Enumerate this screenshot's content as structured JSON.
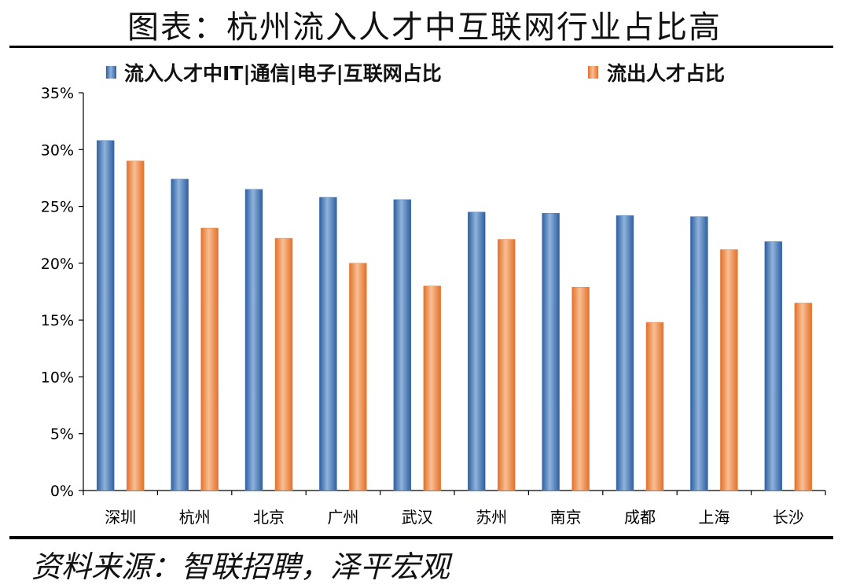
{
  "title": "图表：杭州流入人才中互联网行业占比高",
  "source": "资料来源：智联招聘，泽平宏观",
  "colors": {
    "series_in": "#4a7fc0",
    "series_out": "#ef8a48"
  },
  "chart_data": {
    "type": "bar",
    "categories": [
      "深圳",
      "杭州",
      "北京",
      "广州",
      "武汉",
      "苏州",
      "南京",
      "成都",
      "上海",
      "长沙"
    ],
    "series": [
      {
        "name": "流入人才中IT|通信|电子|互联网占比",
        "values": [
          30.8,
          27.4,
          26.5,
          25.8,
          25.6,
          24.5,
          24.4,
          24.2,
          24.1,
          21.9
        ]
      },
      {
        "name": "流出人才占比",
        "values": [
          29.0,
          23.1,
          22.2,
          20.0,
          18.0,
          22.1,
          17.9,
          14.8,
          21.2,
          16.5
        ]
      }
    ],
    "ylim": [
      0,
      35
    ],
    "yticks": [
      0,
      5,
      10,
      15,
      20,
      25,
      30,
      35
    ],
    "ytick_labels": [
      "0%",
      "5%",
      "10%",
      "15%",
      "20%",
      "25%",
      "30%",
      "35%"
    ],
    "legend_position": "top",
    "grid": false
  }
}
